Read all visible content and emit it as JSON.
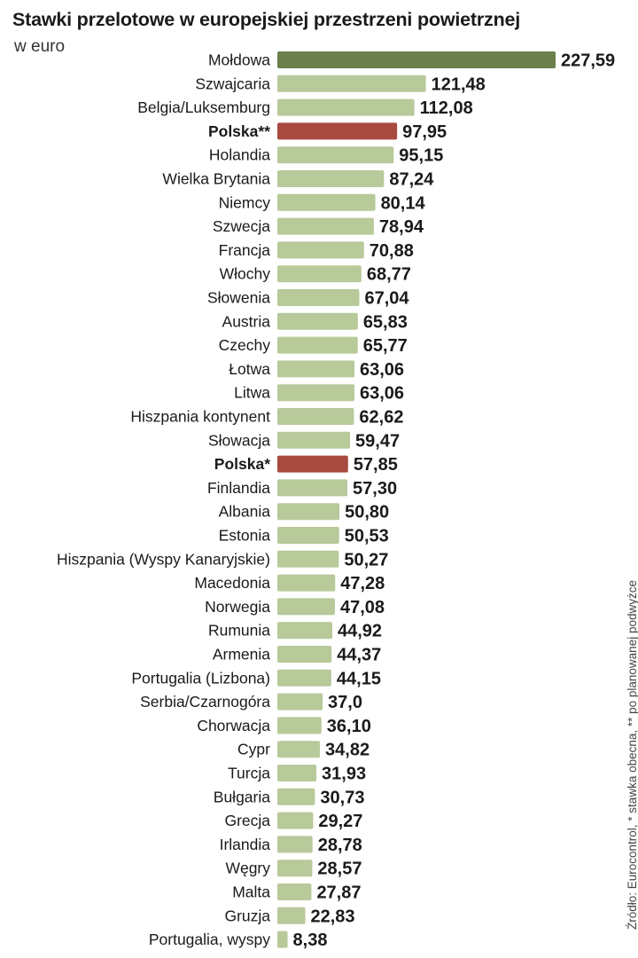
{
  "chart_data": {
    "type": "bar",
    "orientation": "horizontal",
    "title": "Stawki przelotowe w europejskiej przestrzeni powietrznej",
    "subtitle": "w euro",
    "source": "Źródło: Eurocontrol, * stawka obecna, ** po planowanej podwyżce",
    "colors": {
      "default": "#b8c99a",
      "top": "#6b7f4c",
      "highlight": "#a84a40"
    },
    "xlim": [
      0,
      227.59
    ],
    "categories": [
      "Mołdowa",
      "Szwajcaria",
      "Belgia/Luksemburg",
      "Polska**",
      "Holandia",
      "Wielka Brytania",
      "Niemcy",
      "Szwecja",
      "Francja",
      "Włochy",
      "Słowenia",
      "Austria",
      "Czechy",
      "Łotwa",
      "Litwa",
      "Hiszpania kontynent",
      "Słowacja",
      "Polska*",
      "Finlandia",
      "Albania",
      "Estonia",
      "Hiszpania (Wyspy Kanaryjskie)",
      "Macedonia",
      "Norwegia",
      "Rumunia",
      "Armenia",
      "Portugalia (Lizbona)",
      "Serbia/Czarnogóra",
      "Chorwacja",
      "Cypr",
      "Turcja",
      "Bułgaria",
      "Grecja",
      "Irlandia",
      "Węgry",
      "Malta",
      "Gruzja",
      "Portugalia, wyspy"
    ],
    "values": [
      227.59,
      121.48,
      112.08,
      97.95,
      95.15,
      87.24,
      80.14,
      78.94,
      70.88,
      68.77,
      67.04,
      65.83,
      65.77,
      63.06,
      63.06,
      62.62,
      59.47,
      57.85,
      57.3,
      50.8,
      50.53,
      50.27,
      47.28,
      47.08,
      44.92,
      44.37,
      44.15,
      37.0,
      36.1,
      34.82,
      31.93,
      30.73,
      29.27,
      28.78,
      28.57,
      27.87,
      22.83,
      8.38
    ],
    "value_labels": [
      "227,59",
      "121,48",
      "112,08",
      "97,95",
      "95,15",
      "87,24",
      "80,14",
      "78,94",
      "70,88",
      "68,77",
      "67,04",
      "65,83",
      "65,77",
      "63,06",
      "63,06",
      "62,62",
      "59,47",
      "57,85",
      "57,30",
      "50,80",
      "50,53",
      "50,27",
      "47,28",
      "47,08",
      "44,92",
      "44,37",
      "44,15",
      "37,0",
      "36,10",
      "34,82",
      "31,93",
      "30,73",
      "29,27",
      "28,78",
      "28,57",
      "27,87",
      "22,83",
      "8,38"
    ],
    "highlighted": [
      "Polska**",
      "Polska*"
    ],
    "top_category": "Mołdowa"
  }
}
